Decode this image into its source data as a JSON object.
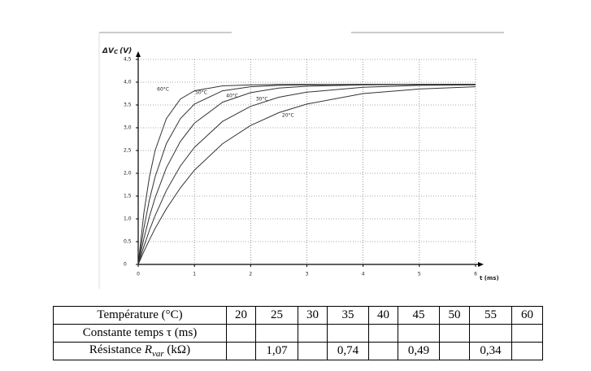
{
  "chart_data": {
    "type": "line",
    "y_label": {
      "main": "ΔV",
      "sub": "C",
      "unit": "(V)"
    },
    "x_label": "t (ms)",
    "x": [
      0,
      0.1,
      0.2,
      0.3,
      0.5,
      0.75,
      1,
      1.5,
      2,
      2.5,
      3,
      4,
      5,
      6
    ],
    "series": [
      {
        "name": "60°C",
        "color": "#333333",
        "values": [
          0,
          1.12,
          1.92,
          2.5,
          3.2,
          3.63,
          3.81,
          3.92,
          3.94,
          3.95,
          3.95,
          3.95,
          3.95,
          3.95
        ]
      },
      {
        "name": "50°C",
        "color": "#333333",
        "values": [
          0,
          0.79,
          1.42,
          1.92,
          2.65,
          3.2,
          3.52,
          3.81,
          3.9,
          3.93,
          3.94,
          3.95,
          3.95,
          3.95
        ]
      },
      {
        "name": "40°C",
        "color": "#333333",
        "values": [
          0,
          0.56,
          1.05,
          1.46,
          2.12,
          2.7,
          3.1,
          3.56,
          3.77,
          3.87,
          3.91,
          3.94,
          3.95,
          3.95
        ]
      },
      {
        "name": "30°C",
        "color": "#333333",
        "values": [
          0,
          0.39,
          0.75,
          1.07,
          1.62,
          2.16,
          2.57,
          3.14,
          3.47,
          3.67,
          3.78,
          3.89,
          3.93,
          3.94
        ]
      },
      {
        "name": "20°C",
        "color": "#333333",
        "values": [
          0,
          0.28,
          0.54,
          0.79,
          1.22,
          1.68,
          2.07,
          2.65,
          3.05,
          3.33,
          3.52,
          3.75,
          3.85,
          3.9
        ]
      }
    ],
    "xlim": [
      0,
      6
    ],
    "xticks": [
      0,
      1,
      2,
      3,
      4,
      5,
      6
    ],
    "ylim": [
      0,
      4.5
    ],
    "yticks": [
      0,
      {
        "value": 0.5,
        "label": "0,5"
      },
      {
        "value": 1,
        "label": "1,0"
      },
      {
        "value": 1.5,
        "label": "1,5"
      },
      {
        "value": 2,
        "label": "2,0"
      },
      {
        "value": 2.5,
        "label": "2,5"
      },
      {
        "value": 3,
        "label": "3,0"
      },
      {
        "value": 3.5,
        "label": "3,5"
      },
      {
        "value": 4,
        "label": "4,0"
      },
      {
        "value": 4.5,
        "label": "4,5"
      }
    ],
    "grid": true
  },
  "table": {
    "header": {
      "label": "Température (°C)",
      "temperatures": [
        20,
        25,
        30,
        35,
        40,
        45,
        50,
        55,
        60
      ]
    },
    "time_constant_row": {
      "label": "Constante temps τ (ms)"
    },
    "resistance_row": {
      "label": {
        "word": "Résistance",
        "symbol": "R",
        "sub": "var",
        "unit": "(kΩ)"
      },
      "values": [
        null,
        "1,07",
        null,
        "0,74",
        null,
        "0,49",
        null,
        "0,34",
        null
      ]
    }
  }
}
